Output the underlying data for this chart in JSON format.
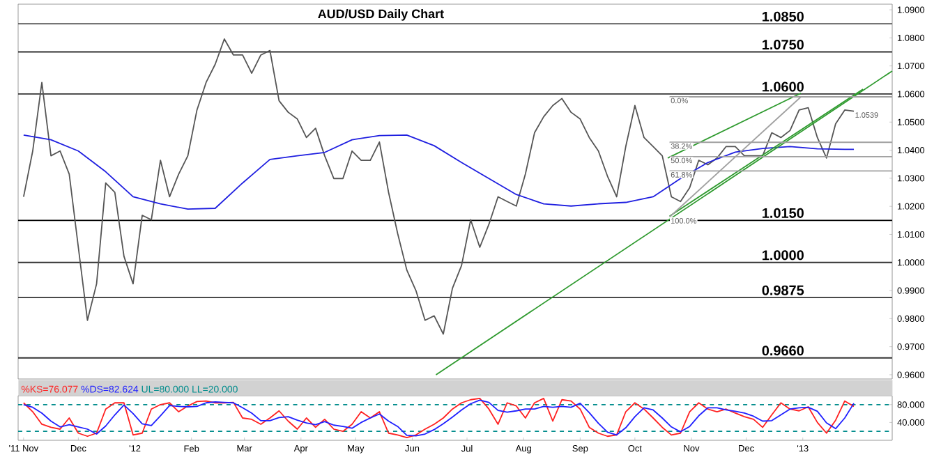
{
  "chart_data": [
    {
      "type": "line",
      "title": "AUD/USD Daily Chart",
      "x": [
        "2011-11-01",
        "2011-11-06",
        "2011-11-11",
        "2011-11-16",
        "2011-11-21",
        "2011-11-26",
        "2011-12-01",
        "2011-12-06",
        "2011-12-11",
        "2011-12-16",
        "2011-12-21",
        "2011-12-26",
        "2011-12-31",
        "2012-01-05",
        "2012-01-10",
        "2012-01-15",
        "2012-01-20",
        "2012-01-25",
        "2012-01-30",
        "2012-02-04",
        "2012-02-09",
        "2012-02-14",
        "2012-02-19",
        "2012-02-24",
        "2012-02-29",
        "2012-03-05",
        "2012-03-10",
        "2012-03-15",
        "2012-03-20",
        "2012-03-25",
        "2012-03-30",
        "2012-04-04",
        "2012-04-09",
        "2012-04-14",
        "2012-04-19",
        "2012-04-24",
        "2012-04-29",
        "2012-05-04",
        "2012-05-09",
        "2012-05-14",
        "2012-05-19",
        "2012-05-24",
        "2012-05-29",
        "2012-06-03",
        "2012-06-08",
        "2012-06-13",
        "2012-06-18",
        "2012-06-23",
        "2012-06-28",
        "2012-07-03",
        "2012-07-08",
        "2012-07-13",
        "2012-07-18",
        "2012-07-23",
        "2012-07-28",
        "2012-08-02",
        "2012-08-07",
        "2012-08-12",
        "2012-08-17",
        "2012-08-22",
        "2012-08-27",
        "2012-09-01",
        "2012-09-06",
        "2012-09-11",
        "2012-09-16",
        "2012-09-21",
        "2012-09-26",
        "2012-10-01",
        "2012-10-06",
        "2012-10-11",
        "2012-10-16",
        "2012-10-21",
        "2012-10-26",
        "2012-10-31",
        "2012-11-05",
        "2012-11-10",
        "2012-11-15",
        "2012-11-20",
        "2012-11-25",
        "2012-11-30",
        "2012-12-05",
        "2012-12-10",
        "2012-12-15",
        "2012-12-20",
        "2012-12-25",
        "2012-12-30",
        "2013-01-04",
        "2013-01-09",
        "2013-01-14",
        "2013-01-19",
        "2013-01-24",
        "2013-01-29"
      ],
      "series": [
        {
          "color": "#555555",
          "values": [
            1.0234,
            1.0397,
            1.0641,
            1.038,
            1.0397,
            1.0315,
            1.0054,
            0.9794,
            0.9924,
            1.0283,
            1.025,
            1.0022,
            0.9924,
            1.0168,
            1.0152,
            1.0364,
            1.0234,
            1.0315,
            1.038,
            1.0543,
            1.0641,
            1.0706,
            1.0796,
            1.0739,
            1.0739,
            1.0674,
            1.0739,
            1.0755,
            1.0576,
            1.0535,
            1.0511,
            1.0445,
            1.0478,
            1.038,
            1.0299,
            1.0299,
            1.0397,
            1.0364,
            1.0364,
            1.0429,
            1.025,
            1.0103,
            0.9973,
            0.99,
            0.9794,
            0.981,
            0.9745,
            0.9908,
            0.9989,
            1.0152,
            1.0054,
            1.0136,
            1.0234,
            1.0217,
            1.0201,
            1.0315,
            1.0462,
            1.0519,
            1.0559,
            1.0584,
            1.0535,
            1.0511,
            1.0445,
            1.0397,
            1.0307,
            1.0234,
            1.0413,
            1.0559,
            1.0445,
            1.0413,
            1.038,
            1.0234,
            1.0217,
            1.0266,
            1.0364,
            1.0348,
            1.0372,
            1.0413,
            1.0413,
            1.038,
            1.038,
            1.038,
            1.0462,
            1.0445,
            1.047,
            1.0543,
            1.0551,
            1.0445,
            1.0372,
            1.0494,
            1.0543,
            1.0539
          ]
        },
        {
          "color": "#1f1fe0",
          "x": [
            "2011-11-01",
            "2011-11-16",
            "2011-12-01",
            "2011-12-16",
            "2011-12-31",
            "2012-01-15",
            "2012-01-30",
            "2012-02-14",
            "2012-02-29",
            "2012-03-15",
            "2012-03-30",
            "2012-04-14",
            "2012-04-29",
            "2012-05-14",
            "2012-05-29",
            "2012-06-13",
            "2012-06-28",
            "2012-07-13",
            "2012-07-28",
            "2012-08-12",
            "2012-08-27",
            "2012-09-11",
            "2012-09-26",
            "2012-10-11",
            "2012-10-26",
            "2012-11-10",
            "2012-11-25",
            "2012-12-10",
            "2012-12-25",
            "2013-01-09",
            "2013-01-24",
            "2013-01-29"
          ],
          "values": [
            1.0454,
            1.0437,
            1.0397,
            1.0323,
            1.0234,
            1.0209,
            1.019,
            1.0193,
            1.0283,
            1.0367,
            1.038,
            1.0392,
            1.0437,
            1.0452,
            1.0454,
            1.0416,
            1.0356,
            1.0299,
            1.0242,
            1.0209,
            1.0201,
            1.0209,
            1.0214,
            1.0234,
            1.0299,
            1.0356,
            1.0393,
            1.0406,
            1.0413,
            1.0405,
            1.0403,
            1.0403
          ]
        },
        {
          "color": "#2e9a2e",
          "x": [
            "2012-06-14",
            "2013-02-19"
          ],
          "values": [
            0.96,
            1.0682
          ]
        },
        {
          "color": "#2e9a2e",
          "x": [
            "2012-10-20",
            "2013-02-03"
          ],
          "values": [
            1.0165,
            1.0617
          ]
        },
        {
          "color": "#2e9a2e",
          "x": [
            "2012-10-19",
            "2012-12-31"
          ],
          "values": [
            1.0372,
            1.0603
          ]
        },
        {
          "color": "#a0a0a0",
          "x": [
            "2012-10-20",
            "2012-12-31"
          ],
          "values": [
            1.0162,
            1.059
          ]
        },
        {
          "color": "#a0a0a0",
          "x": [
            "2012-10-20",
            "2013-02-19"
          ],
          "values": [
            1.059,
            1.059
          ]
        },
        {
          "color": "#a0a0a0",
          "x": [
            "2012-10-20",
            "2013-02-19"
          ],
          "values": [
            1.0428,
            1.0428
          ]
        },
        {
          "color": "#a0a0a0",
          "x": [
            "2012-10-20",
            "2013-02-19"
          ],
          "values": [
            1.0377,
            1.0377
          ]
        },
        {
          "color": "#a0a0a0",
          "x": [
            "2012-10-20",
            "2013-02-19"
          ],
          "values": [
            1.0326,
            1.0326
          ]
        }
      ],
      "xlim": [
        "2011-10-29",
        "2013-02-19"
      ],
      "ylim": [
        0.9585,
        1.092
      ],
      "yticks": [
        {
          "value": 0.96,
          "label": "0.9600"
        },
        {
          "value": 0.97,
          "label": "0.9700"
        },
        {
          "value": 0.98,
          "label": "0.9800"
        },
        {
          "value": 0.99,
          "label": "0.9900"
        },
        {
          "value": 1.0,
          "label": "1.0000"
        },
        {
          "value": 1.01,
          "label": "1.0100"
        },
        {
          "value": 1.02,
          "label": "1.0200"
        },
        {
          "value": 1.03,
          "label": "1.0300"
        },
        {
          "value": 1.04,
          "label": "1.0400"
        },
        {
          "value": 1.05,
          "label": "1.0500"
        },
        {
          "value": 1.06,
          "label": "1.0600"
        },
        {
          "value": 1.07,
          "label": "1.0700"
        },
        {
          "value": 1.08,
          "label": "1.0800"
        },
        {
          "value": 1.09,
          "label": "1.0900"
        }
      ],
      "tick_labels": "y",
      "ref_lines": [
        {
          "axis": "y",
          "value": 1.085,
          "label": "1.0850",
          "color": "#555555"
        },
        {
          "axis": "y",
          "value": 1.075,
          "label": "1.0750",
          "color": "#333333"
        },
        {
          "axis": "y",
          "value": 1.06,
          "label": "1.0600",
          "color": "#333333"
        },
        {
          "axis": "y",
          "value": 1.015,
          "label": "1.0150",
          "color": "#000000"
        },
        {
          "axis": "y",
          "value": 1.0,
          "label": "1.0000",
          "color": "#333333"
        },
        {
          "axis": "y",
          "value": 0.9875,
          "label": "0.9875",
          "color": "#333333"
        },
        {
          "axis": "y",
          "value": 0.966,
          "label": "0.9660",
          "color": "#333333"
        }
      ],
      "annotations": [
        {
          "text": "0.0%",
          "x": "2012-10-20",
          "y": 1.059
        },
        {
          "text": "38.2%",
          "x": "2012-10-20",
          "y": 1.0428
        },
        {
          "text": "50.0%",
          "x": "2012-10-20",
          "y": 1.0377
        },
        {
          "text": "61.8%",
          "x": "2012-10-20",
          "y": 1.0326
        },
        {
          "text": "100.0%",
          "x": "2012-10-20",
          "y": 1.0162
        },
        {
          "text": "1.0539",
          "x": "2013-01-29",
          "y": 1.0539
        }
      ]
    },
    {
      "type": "line",
      "x": [
        "2011-11-01",
        "2011-11-06",
        "2011-11-11",
        "2011-11-16",
        "2011-11-21",
        "2011-11-26",
        "2011-12-01",
        "2011-12-06",
        "2011-12-11",
        "2011-12-16",
        "2011-12-21",
        "2011-12-26",
        "2011-12-31",
        "2012-01-05",
        "2012-01-10",
        "2012-01-15",
        "2012-01-20",
        "2012-01-25",
        "2012-01-30",
        "2012-02-04",
        "2012-02-09",
        "2012-02-14",
        "2012-02-19",
        "2012-02-24",
        "2012-02-29",
        "2012-03-05",
        "2012-03-10",
        "2012-03-15",
        "2012-03-20",
        "2012-03-25",
        "2012-03-30",
        "2012-04-04",
        "2012-04-09",
        "2012-04-14",
        "2012-04-19",
        "2012-04-24",
        "2012-04-29",
        "2012-05-04",
        "2012-05-09",
        "2012-05-14",
        "2012-05-19",
        "2012-05-24",
        "2012-05-29",
        "2012-06-03",
        "2012-06-08",
        "2012-06-13",
        "2012-06-18",
        "2012-06-23",
        "2012-06-28",
        "2012-07-03",
        "2012-07-08",
        "2012-07-13",
        "2012-07-18",
        "2012-07-23",
        "2012-07-28",
        "2012-08-02",
        "2012-08-07",
        "2012-08-12",
        "2012-08-17",
        "2012-08-22",
        "2012-08-27",
        "2012-09-01",
        "2012-09-06",
        "2012-09-11",
        "2012-09-16",
        "2012-09-21",
        "2012-09-26",
        "2012-10-01",
        "2012-10-06",
        "2012-10-11",
        "2012-10-16",
        "2012-10-21",
        "2012-10-26",
        "2012-10-31",
        "2012-11-05",
        "2012-11-10",
        "2012-11-15",
        "2012-11-20",
        "2012-11-25",
        "2012-11-30",
        "2012-12-05",
        "2012-12-10",
        "2012-12-15",
        "2012-12-20",
        "2012-12-25",
        "2012-12-30",
        "2013-01-04",
        "2013-01-09",
        "2013-01-14",
        "2013-01-19",
        "2013-01-24",
        "2013-01-29"
      ],
      "series": [
        {
          "name": "%KS=76.077",
          "color": "#ff2020",
          "values": [
            84,
            64,
            36,
            29,
            25,
            50,
            16,
            9,
            16,
            70,
            84,
            84,
            12,
            16,
            70,
            80,
            84,
            64,
            77,
            87,
            88,
            84,
            84,
            85,
            50,
            47,
            36,
            50,
            66,
            43,
            25,
            50,
            29,
            47,
            25,
            20,
            36,
            64,
            50,
            64,
            16,
            12,
            6,
            12,
            25,
            36,
            50,
            70,
            84,
            91,
            94,
            70,
            36,
            84,
            77,
            50,
            84,
            94,
            43,
            91,
            88,
            70,
            29,
            16,
            9,
            12,
            64,
            84,
            70,
            50,
            29,
            12,
            16,
            64,
            84,
            70,
            64,
            70,
            61,
            53,
            47,
            29,
            57,
            84,
            70,
            66,
            75,
            40,
            16,
            45,
            88,
            76
          ]
        },
        {
          "name": "%DS=82.624",
          "color": "#2020ff",
          "values": [
            80,
            74,
            61,
            43,
            30,
            35,
            30,
            25,
            14,
            32,
            57,
            79,
            60,
            37,
            33,
            55,
            78,
            76,
            75,
            76,
            84,
            86,
            85,
            84,
            73,
            61,
            44,
            44,
            51,
            53,
            45,
            39,
            35,
            42,
            34,
            31,
            27,
            40,
            50,
            59,
            43,
            31,
            11,
            10,
            14,
            24,
            37,
            52,
            68,
            82,
            90,
            85,
            67,
            63,
            66,
            70,
            70,
            76,
            74,
            76,
            74,
            83,
            62,
            38,
            18,
            12,
            28,
            53,
            73,
            68,
            50,
            30,
            19,
            31,
            55,
            73,
            73,
            68,
            65,
            61,
            54,
            43,
            44,
            57,
            70,
            73,
            74,
            65,
            39,
            26,
            50,
            83
          ]
        }
      ],
      "xlim": [
        "2011-10-29",
        "2013-02-19"
      ],
      "ylim": [
        0,
        100
      ],
      "xticks": [
        {
          "value": "2011-11-01",
          "label": "'11 Nov"
        },
        {
          "value": "2011-12-01",
          "label": "Dec"
        },
        {
          "value": "2012-01-01",
          "label": "'12"
        },
        {
          "value": "2012-02-01",
          "label": "Feb"
        },
        {
          "value": "2012-03-01",
          "label": "Mar"
        },
        {
          "value": "2012-04-01",
          "label": "Apr"
        },
        {
          "value": "2012-05-01",
          "label": "May"
        },
        {
          "value": "2012-06-01",
          "label": "Jun"
        },
        {
          "value": "2012-07-01",
          "label": "Jul"
        },
        {
          "value": "2012-08-01",
          "label": "Aug"
        },
        {
          "value": "2012-09-01",
          "label": "Sep"
        },
        {
          "value": "2012-10-01",
          "label": "Oct"
        },
        {
          "value": "2012-11-01",
          "label": "Nov"
        },
        {
          "value": "2012-12-01",
          "label": "Dec"
        },
        {
          "value": "2013-01-01",
          "label": "'13"
        }
      ],
      "yticks": [
        {
          "value": 40,
          "label": "40.000"
        },
        {
          "value": 80,
          "label": "80.000"
        }
      ],
      "legend": "top left",
      "ref_lines": [
        {
          "axis": "y",
          "value": 80,
          "label": "UL=80.000",
          "color": "#008c8c",
          "line_style": "dashed"
        },
        {
          "axis": "y",
          "value": 20,
          "label": "LL=20.000",
          "color": "#008c8c",
          "line_style": "dashed"
        }
      ]
    }
  ]
}
